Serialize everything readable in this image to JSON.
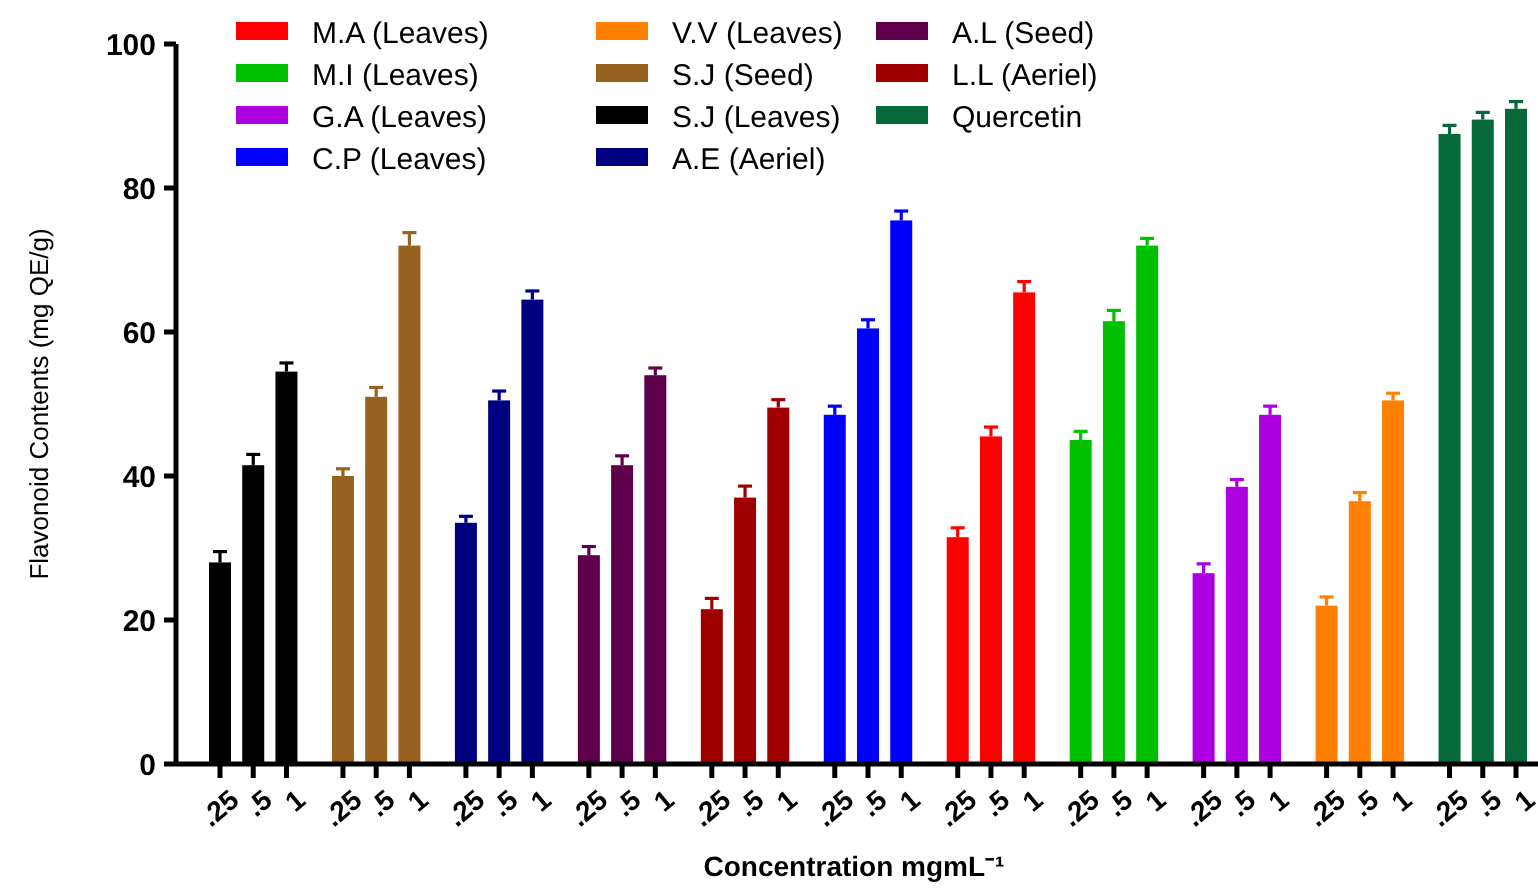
{
  "chart_data": {
    "type": "bar",
    "xlabel": "Concentration mgmL⁻¹",
    "ylabel": "Flavonoid Contents (mg QE/g)",
    "categories": [
      ".25",
      ".5",
      "1",
      ".25",
      ".5",
      "1",
      ".25",
      ".5",
      "1",
      ".25",
      ".5",
      "1",
      ".25",
      ".5",
      "1",
      ".25",
      ".5",
      "1",
      ".25",
      ".5",
      "1",
      ".25",
      ".5",
      "1",
      ".25",
      ".5",
      "1",
      ".25",
      ".5",
      "1",
      ".25",
      ".5",
      "1"
    ],
    "ylim": [
      0,
      100
    ],
    "yticks": [
      0,
      20,
      40,
      60,
      80,
      100
    ],
    "grid": false,
    "legend": "top",
    "series": [
      {
        "name": "M.A (Leaves)",
        "color": "#ff0000",
        "values": [
          null,
          null,
          null,
          null,
          null,
          null,
          null,
          null,
          null,
          null,
          null,
          null,
          null,
          null,
          null,
          null,
          null,
          null,
          31.5,
          45.5,
          65.5,
          null,
          null,
          null,
          null,
          null,
          null,
          null,
          null,
          null,
          null,
          null,
          null
        ],
        "errors": [
          null,
          null,
          null,
          null,
          null,
          null,
          null,
          null,
          null,
          null,
          null,
          null,
          null,
          null,
          null,
          null,
          null,
          null,
          1.3,
          1.3,
          1.5,
          null,
          null,
          null,
          null,
          null,
          null,
          null,
          null,
          null,
          null,
          null,
          null
        ]
      },
      {
        "name": "M.I (Leaves)",
        "color": "#00c000",
        "values": [
          null,
          null,
          null,
          null,
          null,
          null,
          null,
          null,
          null,
          null,
          null,
          null,
          null,
          null,
          null,
          null,
          null,
          null,
          null,
          null,
          null,
          45,
          61.5,
          72,
          null,
          null,
          null,
          null,
          null,
          null,
          null,
          null,
          null
        ],
        "errors": [
          null,
          null,
          null,
          null,
          null,
          null,
          null,
          null,
          null,
          null,
          null,
          null,
          null,
          null,
          null,
          null,
          null,
          null,
          null,
          null,
          null,
          1.2,
          1.5,
          1,
          null,
          null,
          null,
          null,
          null,
          null,
          null,
          null,
          null
        ]
      },
      {
        "name": "G.A (Leaves)",
        "color": "#ac00e0",
        "values": [
          null,
          null,
          null,
          null,
          null,
          null,
          null,
          null,
          null,
          null,
          null,
          null,
          null,
          null,
          null,
          null,
          null,
          null,
          null,
          null,
          null,
          null,
          null,
          null,
          26.5,
          38.5,
          48.5,
          null,
          null,
          null,
          null,
          null,
          null
        ],
        "errors": [
          null,
          null,
          null,
          null,
          null,
          null,
          null,
          null,
          null,
          null,
          null,
          null,
          null,
          null,
          null,
          null,
          null,
          null,
          null,
          null,
          null,
          null,
          null,
          null,
          1.3,
          1,
          1.2,
          null,
          null,
          null,
          null,
          null,
          null
        ]
      },
      {
        "name": "C.P (Leaves)",
        "color": "#0000ff",
        "values": [
          null,
          null,
          null,
          null,
          null,
          null,
          null,
          null,
          null,
          null,
          null,
          null,
          null,
          null,
          null,
          48.5,
          60.5,
          75.5,
          null,
          null,
          null,
          null,
          null,
          null,
          null,
          null,
          null,
          null,
          null,
          null,
          null,
          null,
          null
        ],
        "errors": [
          null,
          null,
          null,
          null,
          null,
          null,
          null,
          null,
          null,
          null,
          null,
          null,
          null,
          null,
          null,
          1.2,
          1.2,
          1.3,
          null,
          null,
          null,
          null,
          null,
          null,
          null,
          null,
          null,
          null,
          null,
          null,
          null,
          null,
          null
        ]
      },
      {
        "name": "V.V (Leaves)",
        "color": "#ff8000",
        "values": [
          null,
          null,
          null,
          null,
          null,
          null,
          null,
          null,
          null,
          null,
          null,
          null,
          null,
          null,
          null,
          null,
          null,
          null,
          null,
          null,
          null,
          null,
          null,
          null,
          null,
          null,
          null,
          22,
          36.5,
          50.5,
          null,
          null,
          null
        ],
        "errors": [
          null,
          null,
          null,
          null,
          null,
          null,
          null,
          null,
          null,
          null,
          null,
          null,
          null,
          null,
          null,
          null,
          null,
          null,
          null,
          null,
          null,
          null,
          null,
          null,
          null,
          null,
          null,
          1.2,
          1.2,
          1,
          null,
          null,
          null
        ]
      },
      {
        "name": "S.J (Seed)",
        "color": "#976120",
        "values": [
          null,
          null,
          null,
          40,
          51,
          72,
          null,
          null,
          null,
          null,
          null,
          null,
          null,
          null,
          null,
          null,
          null,
          null,
          null,
          null,
          null,
          null,
          null,
          null,
          null,
          null,
          null,
          null,
          null,
          null,
          null,
          null,
          null
        ],
        "errors": [
          null,
          null,
          null,
          1,
          1.3,
          1.8,
          null,
          null,
          null,
          null,
          null,
          null,
          null,
          null,
          null,
          null,
          null,
          null,
          null,
          null,
          null,
          null,
          null,
          null,
          null,
          null,
          null,
          null,
          null,
          null,
          null,
          null,
          null
        ]
      },
      {
        "name": "S.J (Leaves)",
        "color": "#000000",
        "values": [
          28,
          41.5,
          54.5,
          null,
          null,
          null,
          null,
          null,
          null,
          null,
          null,
          null,
          null,
          null,
          null,
          null,
          null,
          null,
          null,
          null,
          null,
          null,
          null,
          null,
          null,
          null,
          null,
          null,
          null,
          null,
          null,
          null,
          null
        ],
        "errors": [
          1.5,
          1.5,
          1.2,
          null,
          null,
          null,
          null,
          null,
          null,
          null,
          null,
          null,
          null,
          null,
          null,
          null,
          null,
          null,
          null,
          null,
          null,
          null,
          null,
          null,
          null,
          null,
          null,
          null,
          null,
          null,
          null,
          null,
          null
        ]
      },
      {
        "name": "A.E (Aeriel)",
        "color": "#000080",
        "values": [
          null,
          null,
          null,
          null,
          null,
          null,
          33.5,
          50.5,
          64.5,
          null,
          null,
          null,
          null,
          null,
          null,
          null,
          null,
          null,
          null,
          null,
          null,
          null,
          null,
          null,
          null,
          null,
          null,
          null,
          null,
          null,
          null,
          null,
          null
        ],
        "errors": [
          null,
          null,
          null,
          null,
          null,
          null,
          0.9,
          1.3,
          1.2,
          null,
          null,
          null,
          null,
          null,
          null,
          null,
          null,
          null,
          null,
          null,
          null,
          null,
          null,
          null,
          null,
          null,
          null,
          null,
          null,
          null,
          null,
          null,
          null
        ]
      },
      {
        "name": "A.L (Seed)",
        "color": "#5e004b",
        "values": [
          null,
          null,
          null,
          null,
          null,
          null,
          null,
          null,
          null,
          29,
          41.5,
          54,
          null,
          null,
          null,
          null,
          null,
          null,
          null,
          null,
          null,
          null,
          null,
          null,
          null,
          null,
          null,
          null,
          null,
          null,
          null,
          null,
          null
        ],
        "errors": [
          null,
          null,
          null,
          null,
          null,
          null,
          null,
          null,
          null,
          1.2,
          1.3,
          1,
          null,
          null,
          null,
          null,
          null,
          null,
          null,
          null,
          null,
          null,
          null,
          null,
          null,
          null,
          null,
          null,
          null,
          null,
          null,
          null,
          null
        ]
      },
      {
        "name": "L.L (Aeriel)",
        "color": "#9e0000",
        "values": [
          null,
          null,
          null,
          null,
          null,
          null,
          null,
          null,
          null,
          null,
          null,
          null,
          21.5,
          37,
          49.5,
          null,
          null,
          null,
          null,
          null,
          null,
          null,
          null,
          null,
          null,
          null,
          null,
          null,
          null,
          null,
          null,
          null,
          null
        ],
        "errors": [
          null,
          null,
          null,
          null,
          null,
          null,
          null,
          null,
          null,
          null,
          null,
          null,
          1.5,
          1.6,
          1.1,
          null,
          null,
          null,
          null,
          null,
          null,
          null,
          null,
          null,
          null,
          null,
          null,
          null,
          null,
          null,
          null,
          null,
          null
        ]
      },
      {
        "name": "Quercetin",
        "color": "#05693a",
        "values": [
          null,
          null,
          null,
          null,
          null,
          null,
          null,
          null,
          null,
          null,
          null,
          null,
          null,
          null,
          null,
          null,
          null,
          null,
          null,
          null,
          null,
          null,
          null,
          null,
          null,
          null,
          null,
          null,
          null,
          null,
          87.5,
          89.5,
          91
        ],
        "errors": [
          null,
          null,
          null,
          null,
          null,
          null,
          null,
          null,
          null,
          null,
          null,
          null,
          null,
          null,
          null,
          null,
          null,
          null,
          null,
          null,
          null,
          null,
          null,
          null,
          null,
          null,
          null,
          null,
          null,
          null,
          1.2,
          1,
          1
        ]
      }
    ]
  }
}
